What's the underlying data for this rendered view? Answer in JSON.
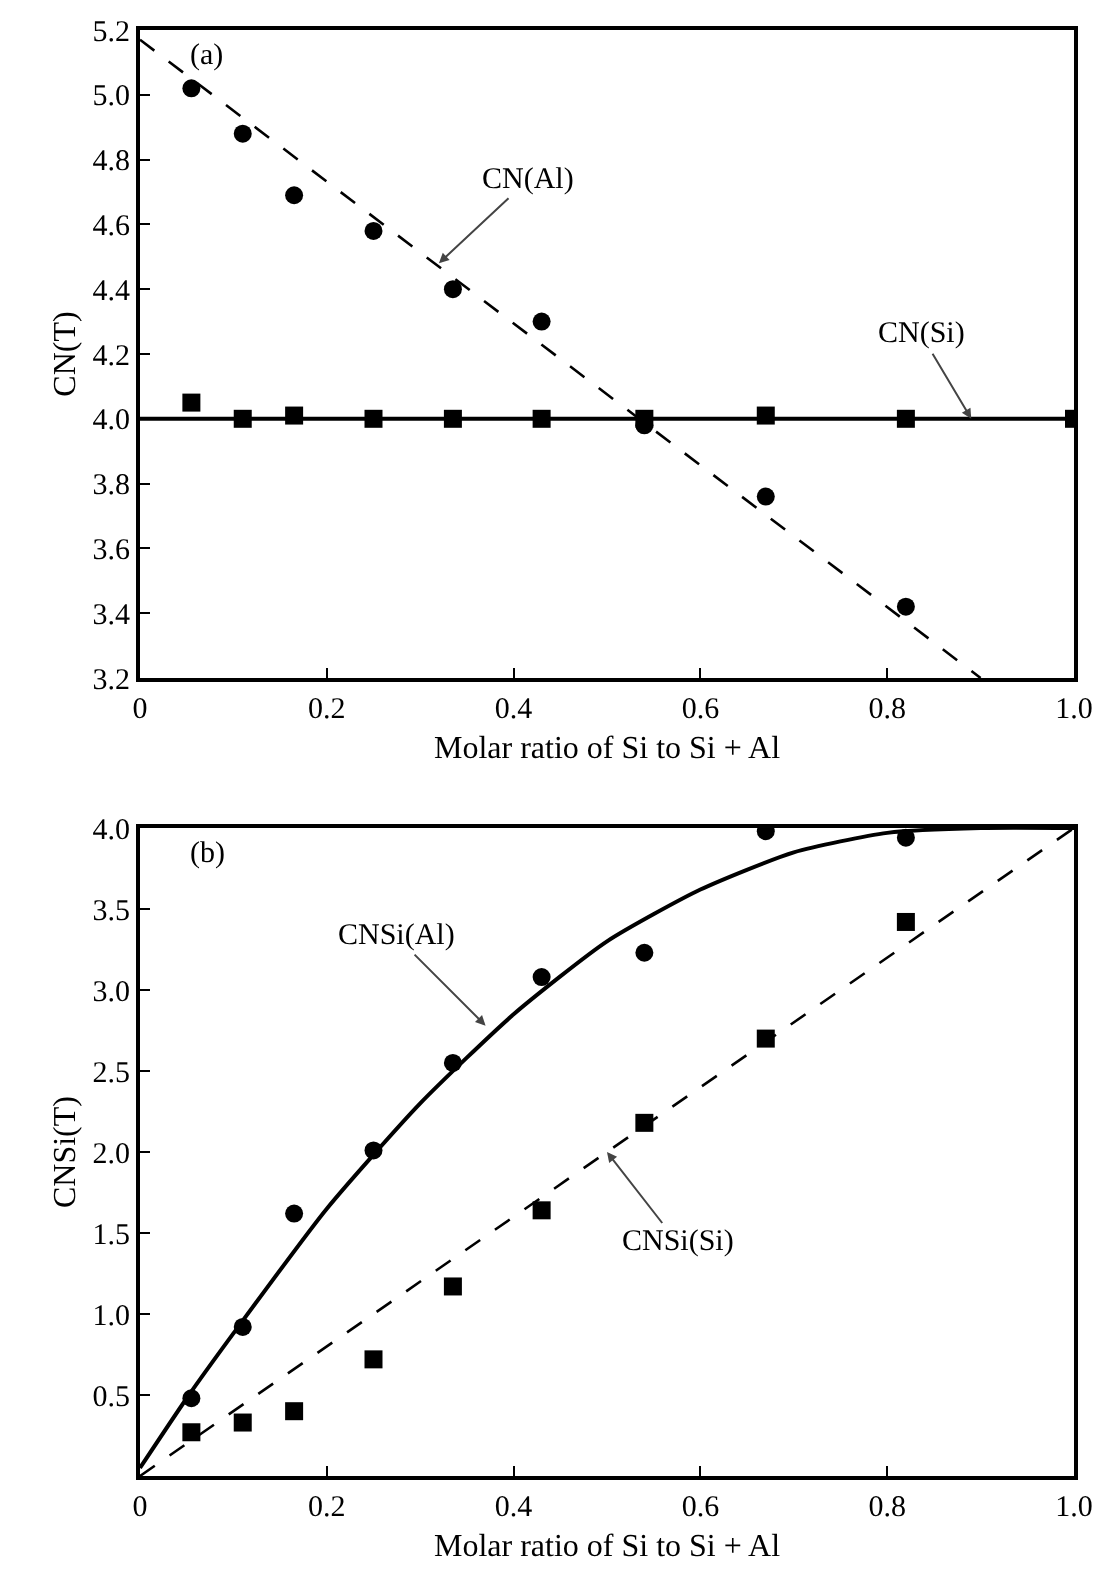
{
  "chart_data": [
    {
      "type": "scatter",
      "xlabel": "Molar ratio of Si to Si + Al",
      "ylabel": "CN(T)",
      "xlim": [
        0,
        1
      ],
      "xticks": [
        0,
        {
          "value": 0.2,
          "label": "0.2"
        },
        {
          "value": 0.4,
          "label": "0.4"
        },
        {
          "value": 0.6,
          "label": "0.6"
        },
        {
          "value": 0.8,
          "label": "0.8"
        },
        {
          "value": 1,
          "label": "1.0"
        }
      ],
      "ylim": [
        3.2,
        5.2
      ],
      "yticks": [
        3.2,
        3.4,
        3.6,
        3.8,
        {
          "value": 4,
          "label": "4.0"
        },
        4.2,
        4.4,
        4.6,
        4.8,
        {
          "value": 5,
          "label": "5.0"
        },
        5.2
      ],
      "grid": false,
      "series": [
        {
          "marker": "circle",
          "color": "#000000",
          "x": [
            0.055,
            0.11,
            0.165,
            0.25,
            0.335,
            0.43,
            0.54,
            0.67,
            0.82
          ],
          "values": [
            5.02,
            4.88,
            4.69,
            4.58,
            4.4,
            4.3,
            3.98,
            3.76,
            3.42
          ]
        },
        {
          "marker": "square",
          "color": "#000000",
          "x": [
            0.055,
            0.11,
            0.165,
            0.25,
            0.335,
            0.43,
            0.54,
            0.67,
            0.82,
            1.0
          ],
          "values": [
            4.05,
            4.0,
            4.01,
            4.0,
            4.0,
            4.0,
            4.0,
            4.01,
            4.0,
            4.0
          ]
        },
        {
          "type": "line",
          "line_style": "dashed",
          "color": "#000000",
          "x": [
            0,
            0.9
          ],
          "values": [
            5.17,
            3.2
          ]
        },
        {
          "type": "line",
          "line_style": "solid",
          "color": "#000000",
          "x": [
            0,
            1
          ],
          "values": [
            4.0,
            4.0
          ]
        }
      ],
      "annotations": [
        "(a)",
        {
          "text": "CN(Al)",
          "x": 0.32,
          "y": 4.48
        },
        {
          "text": "CN(Si)",
          "x": 0.89,
          "y": 4.0
        }
      ]
    },
    {
      "type": "scatter",
      "xlabel": "Molar ratio of Si to Si + Al",
      "ylabel": "CNSi(T)",
      "xlim": [
        0,
        1
      ],
      "xticks": [
        0,
        {
          "value": 0.2,
          "label": "0.2"
        },
        {
          "value": 0.4,
          "label": "0.4"
        },
        {
          "value": 0.6,
          "label": "0.6"
        },
        {
          "value": 0.8,
          "label": "0.8"
        },
        {
          "value": 1,
          "label": "1.0"
        }
      ],
      "ylim": [
        0,
        4
      ],
      "yticks": [
        {
          "value": 0.5,
          "label": "0.5"
        },
        {
          "value": 1,
          "label": "1.0"
        },
        {
          "value": 1.5,
          "label": "1.5"
        },
        {
          "value": 2,
          "label": "2.0"
        },
        {
          "value": 2.5,
          "label": "2.5"
        },
        {
          "value": 3,
          "label": "3.0"
        },
        {
          "value": 3.5,
          "label": "3.5"
        },
        {
          "value": 4,
          "label": "4.0"
        }
      ],
      "grid": false,
      "series": [
        {
          "marker": "circle",
          "color": "#000000",
          "x": [
            0.055,
            0.11,
            0.165,
            0.25,
            0.335,
            0.43,
            0.54,
            0.67,
            0.82
          ],
          "values": [
            0.48,
            0.92,
            1.62,
            2.01,
            2.55,
            3.08,
            3.23,
            3.98,
            3.94
          ]
        },
        {
          "marker": "square",
          "color": "#000000",
          "x": [
            0.055,
            0.11,
            0.165,
            0.25,
            0.335,
            0.43,
            0.54,
            0.67,
            0.82
          ],
          "values": [
            0.27,
            0.33,
            0.4,
            0.72,
            1.17,
            1.64,
            2.18,
            2.7,
            3.42
          ]
        },
        {
          "type": "line",
          "line_style": "solid",
          "color": "#000000",
          "x": [
            0,
            0.05,
            0.1,
            0.2,
            0.3,
            0.4,
            0.5,
            0.6,
            0.7,
            0.8,
            0.9,
            1.0
          ],
          "values": [
            0.05,
            0.48,
            0.88,
            1.65,
            2.3,
            2.85,
            3.3,
            3.62,
            3.85,
            3.97,
            4.0,
            4.0
          ]
        },
        {
          "type": "line",
          "line_style": "dashed",
          "color": "#000000",
          "x": [
            0,
            1
          ],
          "values": [
            0,
            4
          ]
        }
      ],
      "annotations": [
        "(b)",
        {
          "text": "CNSi(Al)",
          "x": 0.37,
          "y": 2.78
        },
        {
          "text": "CNSi(Si)",
          "x": 0.5,
          "y": 2.0
        }
      ]
    }
  ]
}
